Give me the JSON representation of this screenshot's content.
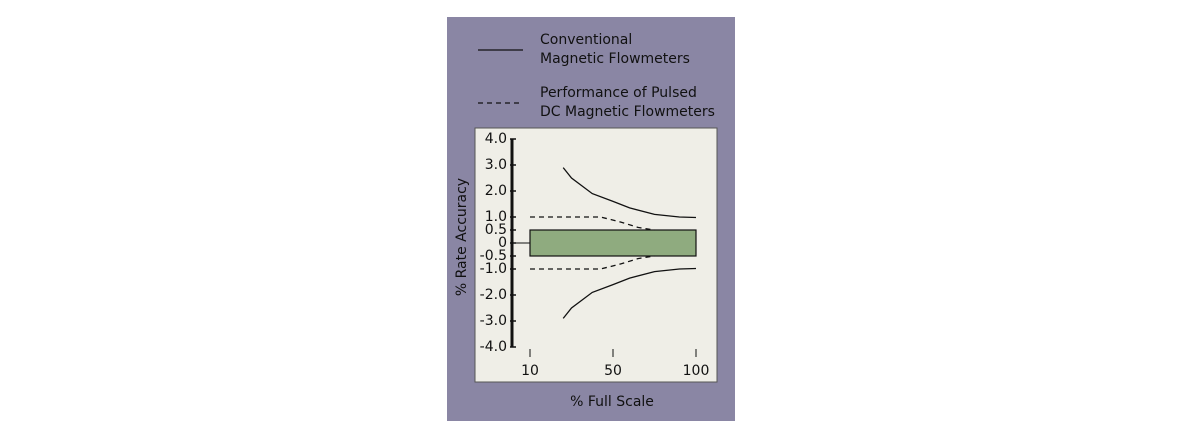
{
  "chart_data": {
    "type": "line",
    "x_label": "% Full Scale",
    "y_label": "% Rate Accuracy",
    "ylim": [
      -4,
      4
    ],
    "yticks": [
      {
        "value": 4,
        "label": "4.0"
      },
      {
        "value": 3,
        "label": "3.0"
      },
      {
        "value": 2,
        "label": "2.0"
      },
      {
        "value": 1,
        "label": "1.0"
      },
      0.5,
      0,
      -0.5,
      {
        "value": -1,
        "label": "-1.0"
      },
      {
        "value": -2,
        "label": "-2.0"
      },
      {
        "value": -3,
        "label": "-3.0"
      },
      {
        "value": -4,
        "label": "-4.0"
      }
    ],
    "xticks": [
      10,
      50,
      100
    ],
    "band": {
      "xrange": [
        10,
        100
      ],
      "yrange": [
        -0.5,
        0.5
      ],
      "color": "#8fab7f"
    },
    "series": [
      {
        "name": "Conventional\nMagnetic Flowmeters",
        "color": "#111111",
        "dashed": false,
        "x": [
          26,
          30,
          40,
          50,
          60,
          75,
          90,
          100
        ],
        "upper": [
          2.9,
          2.5,
          1.9,
          1.6,
          1.35,
          1.1,
          1.0,
          0.98
        ],
        "lower": [
          -2.9,
          -2.5,
          -1.9,
          -1.6,
          -1.35,
          -1.1,
          -1.0,
          -0.98
        ]
      },
      {
        "name": "Performance of Pulsed\nDC Magnetic Flowmeters",
        "color": "#111111",
        "dashed": true,
        "x": [
          10,
          44,
          55,
          65,
          75
        ],
        "upper": [
          1,
          1,
          0.8,
          0.6,
          0.5
        ],
        "lower": [
          -1,
          -1,
          -0.8,
          -0.6,
          -0.5
        ]
      }
    ]
  }
}
